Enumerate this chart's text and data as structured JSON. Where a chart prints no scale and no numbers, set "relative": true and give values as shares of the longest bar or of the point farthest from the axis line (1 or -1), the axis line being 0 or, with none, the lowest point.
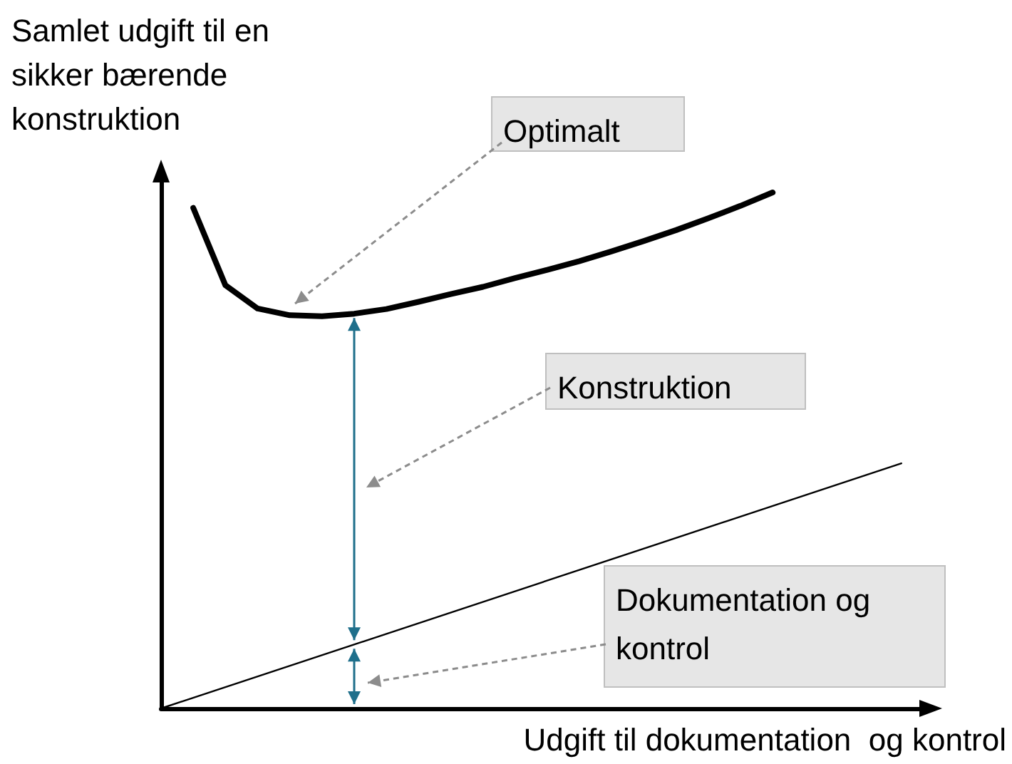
{
  "chart_data": {
    "type": "line",
    "relative": true,
    "ylabel": "Samlet udgift til en sikker bærende konstruktion",
    "xlabel": "Udgift til dokumentation  og kontrol",
    "marker": "none",
    "line_style": "solid",
    "categories": [
      null,
      null,
      null,
      null,
      null,
      null,
      null,
      null,
      null,
      null,
      null,
      null,
      null,
      null,
      null,
      null,
      null,
      null,
      null,
      null,
      null,
      null,
      null,
      null,
      null
    ],
    "series": [
      {
        "color": "#000000",
        "values": [
          null,
          0.97,
          0.82,
          0.775,
          0.762,
          0.76,
          0.765,
          0.774,
          0.788,
          0.803,
          0.817,
          0.834,
          0.85,
          0.867,
          0.886,
          0.906,
          0.927,
          0.95,
          0.974,
          1.0,
          null,
          null,
          null,
          null,
          null
        ]
      },
      {
        "color": "#000000",
        "values": [
          0,
          null,
          null,
          null,
          null,
          null,
          null,
          null,
          null,
          null,
          null,
          null,
          null,
          null,
          null,
          null,
          null,
          null,
          null,
          null,
          null,
          null,
          null,
          0.475,
          null
        ]
      }
    ],
    "annotations": [
      "Optimalt",
      "Konstruktion",
      "Dokumentation og kontrol"
    ]
  }
}
